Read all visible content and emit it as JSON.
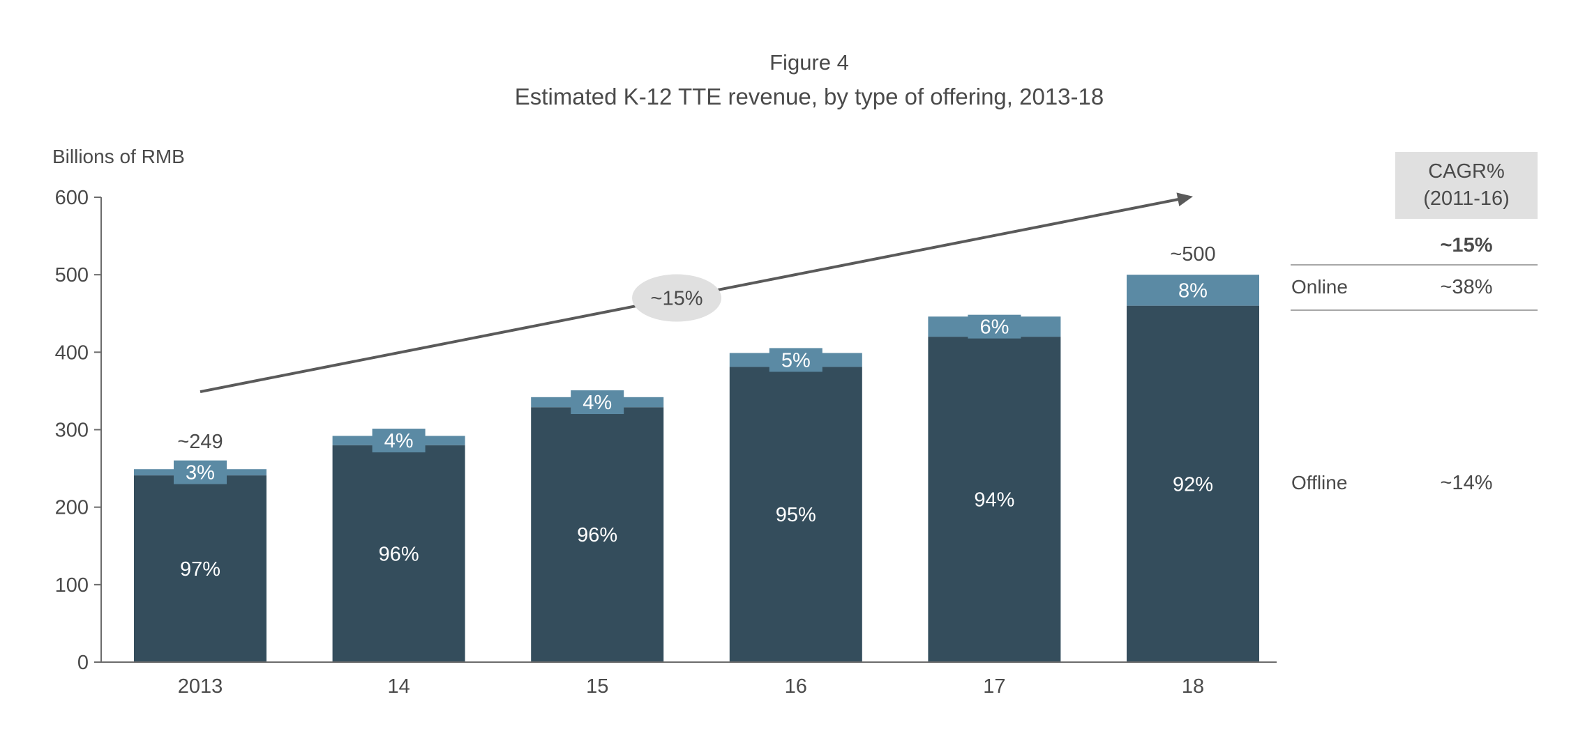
{
  "chart_data": {
    "type": "bar",
    "stacked": true,
    "title": "Figure 4",
    "subtitle": "Estimated K-12 TTE revenue, by type of offering, 2013-18",
    "ylabel": "Billions of RMB",
    "xlabel": "",
    "ylim": [
      0,
      600
    ],
    "yticks": [
      0,
      100,
      200,
      300,
      400,
      500,
      600
    ],
    "grid": false,
    "categories": [
      "2013",
      "14",
      "15",
      "16",
      "17",
      "18"
    ],
    "series": [
      {
        "name": "Offline",
        "color": "#344d5c",
        "values": [
          241,
          280,
          329,
          381,
          420,
          460
        ],
        "labels": [
          "97%",
          "96%",
          "96%",
          "95%",
          "94%",
          "92%"
        ]
      },
      {
        "name": "Online",
        "color": "#5b8aa4",
        "values": [
          8,
          12,
          13,
          18,
          26,
          40
        ],
        "labels": [
          "3%",
          "4%",
          "4%",
          "5%",
          "6%",
          "8%"
        ]
      }
    ],
    "total_labels": [
      {
        "category": "2013",
        "text": "~249",
        "value": 249
      },
      {
        "category": "18",
        "text": "~500",
        "value": 500
      }
    ],
    "trend": {
      "from_value": 349,
      "to_value": 601,
      "label": "~15%"
    },
    "cagr_table": {
      "header": [
        "CAGR%",
        "(2011-16)"
      ],
      "total": "~15%",
      "rows": [
        {
          "name": "Online",
          "value": "~38%"
        },
        {
          "name": "Offline",
          "value": "~14%"
        }
      ]
    }
  },
  "colors": {
    "offline": "#344d5c",
    "online": "#5b8aa4",
    "text": "#4a4a4a",
    "axis": "#6b6b6b",
    "header_bg": "#e0e0e0",
    "bubble_bg": "#e0e0e0"
  }
}
